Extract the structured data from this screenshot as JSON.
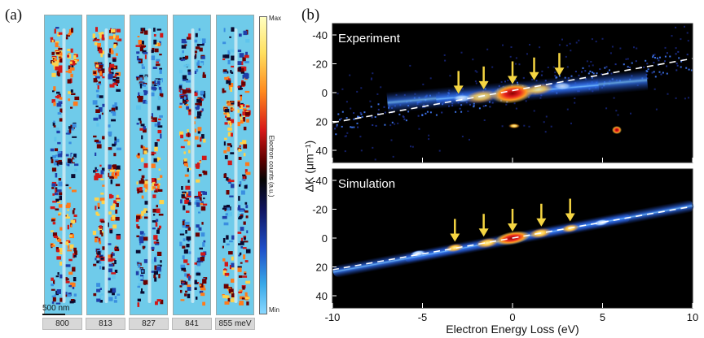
{
  "panel_a": {
    "label": "(a)",
    "scale_bar": "500 nm",
    "energies": [
      "800",
      "813",
      "827",
      "841",
      "855 meV"
    ],
    "colorbar": {
      "max_label": "Max",
      "min_label": "Min",
      "title": "Electron counts (a.u.)"
    }
  },
  "panel_b": {
    "label": "(b)",
    "top_title": "Experiment",
    "bottom_title": "Simulation",
    "ylabel": "ΔK (μm⁻¹)",
    "xlabel": "Electron Energy Loss (eV)",
    "yticks": [
      "-40",
      "-20",
      "0",
      "20",
      "40"
    ],
    "xticks": [
      "-10",
      "-5",
      "0",
      "5",
      "10"
    ],
    "colors": {
      "background": "#000000",
      "accent_arrow": "#f5d542",
      "dashed_line": "#ffffff"
    },
    "arrow_energies_top": [
      -3.0,
      -1.6,
      0,
      1.2,
      2.6
    ],
    "arrow_energies_bottom": [
      -3.2,
      -1.6,
      0,
      1.6,
      3.2
    ]
  },
  "chart_data": [
    {
      "type": "heatmap",
      "title": "Experiment",
      "xlabel": "Electron Energy Loss (eV)",
      "ylabel": "ΔK (μm⁻¹)",
      "xlim": [
        -10,
        10
      ],
      "ylim": [
        50,
        -50
      ],
      "grid": false,
      "dispersion_line": {
        "x": [
          -10,
          10
        ],
        "y": [
          22,
          -18
        ]
      },
      "peaks_marked_eV": [
        -3.0,
        -1.6,
        0,
        1.2,
        2.6
      ]
    },
    {
      "type": "heatmap",
      "title": "Simulation",
      "xlabel": "Electron Energy Loss (eV)",
      "ylabel": "ΔK (μm⁻¹)",
      "xlim": [
        -10,
        10
      ],
      "ylim": [
        50,
        -50
      ],
      "grid": false,
      "dispersion_line": {
        "x": [
          -10,
          10
        ],
        "y": [
          22,
          -18
        ]
      },
      "peaks_marked_eV": [
        -3.2,
        -1.6,
        0,
        1.6,
        3.2
      ]
    }
  ]
}
